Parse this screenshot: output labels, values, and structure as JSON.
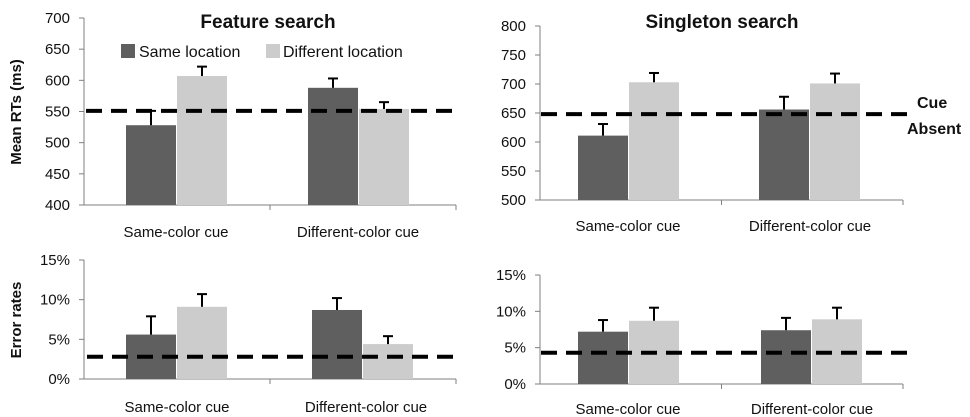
{
  "colors": {
    "same_location": "#5f5f5f",
    "different_location": "#cccccc",
    "cue_absent_line": "#000000",
    "error_bar": "#000000",
    "axis": "#7f7f7f"
  },
  "legend": {
    "position": "top-left",
    "items": [
      "Same location",
      "Different location"
    ]
  },
  "cue_absent_label": [
    "Cue",
    "Absent"
  ],
  "chart_data": [
    {
      "id": "rt_feature",
      "type": "bar",
      "title": "Feature search",
      "ylabel": "Mean RTs (ms)",
      "categories": [
        "Same-color cue",
        "Different-color cue"
      ],
      "series": [
        {
          "name": "Same location",
          "values": [
            528,
            588
          ],
          "errors": [
            23,
            15
          ]
        },
        {
          "name": "Different location",
          "values": [
            607,
            554
          ],
          "errors": [
            15,
            11
          ]
        }
      ],
      "baseline": 551,
      "ylim": [
        400,
        700
      ],
      "yticks": [
        400,
        450,
        500,
        550,
        600,
        650,
        700
      ],
      "ytick_labels": [
        "400",
        "450",
        "500",
        "550",
        "600",
        "650",
        "700"
      ]
    },
    {
      "id": "rt_singleton",
      "type": "bar",
      "title": "Singleton search",
      "ylabel": "",
      "categories": [
        "Same-color cue",
        "Different-color cue"
      ],
      "series": [
        {
          "name": "Same location",
          "values": [
            611,
            656
          ],
          "errors": [
            20,
            22
          ]
        },
        {
          "name": "Different location",
          "values": [
            703,
            701
          ],
          "errors": [
            16,
            17
          ]
        }
      ],
      "baseline": 648,
      "ylim": [
        500,
        800
      ],
      "yticks": [
        500,
        550,
        600,
        650,
        700,
        750,
        800
      ],
      "ytick_labels": [
        "500",
        "550",
        "600",
        "650",
        "700",
        "750",
        "800"
      ]
    },
    {
      "id": "err_feature",
      "type": "bar",
      "title": "",
      "ylabel": "Error rates",
      "categories": [
        "Same-color cue",
        "Different-color cue"
      ],
      "series": [
        {
          "name": "Same location",
          "values": [
            5.6,
            8.7
          ],
          "errors": [
            2.3,
            1.5
          ]
        },
        {
          "name": "Different location",
          "values": [
            9.1,
            4.4
          ],
          "errors": [
            1.6,
            1.0
          ]
        }
      ],
      "baseline": 2.8,
      "ylim": [
        0,
        15
      ],
      "yticks": [
        0,
        5,
        10,
        15
      ],
      "ytick_labels": [
        "0%",
        "5%",
        "10%",
        "15%"
      ]
    },
    {
      "id": "err_singleton",
      "type": "bar",
      "title": "",
      "ylabel": "",
      "categories": [
        "Same-color cue",
        "Different-color cue"
      ],
      "series": [
        {
          "name": "Same location",
          "values": [
            7.2,
            7.4
          ],
          "errors": [
            1.6,
            1.7
          ]
        },
        {
          "name": "Different location",
          "values": [
            8.7,
            8.9
          ],
          "errors": [
            1.8,
            1.6
          ]
        }
      ],
      "baseline": 4.3,
      "ylim": [
        0,
        15
      ],
      "yticks": [
        0,
        5,
        10,
        15
      ],
      "ytick_labels": [
        "0%",
        "5%",
        "10%",
        "15%"
      ]
    }
  ]
}
